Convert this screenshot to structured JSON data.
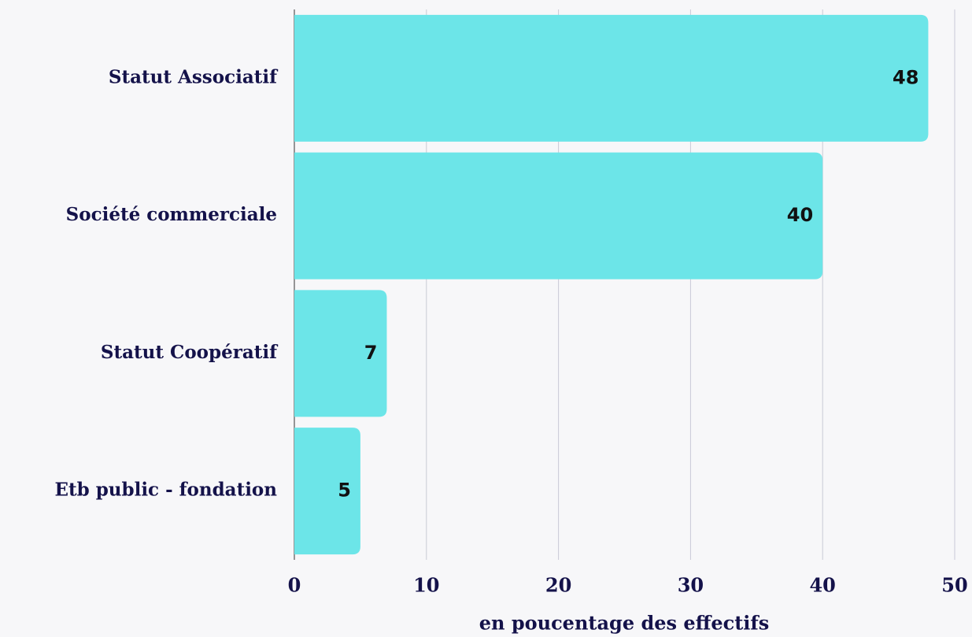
{
  "chart_data": {
    "type": "bar",
    "orientation": "horizontal",
    "categories": [
      "Statut Associatif",
      "Société commerciale",
      "Statut Coopératif",
      "Etb public - fondation"
    ],
    "values": [
      48,
      40,
      7,
      5
    ],
    "color": "#6ce5e8",
    "xlabel": "en poucentage des effectifs",
    "xlim": [
      0,
      50
    ],
    "xticks": [
      0,
      10,
      20,
      30,
      40,
      50
    ],
    "grid": true
  }
}
